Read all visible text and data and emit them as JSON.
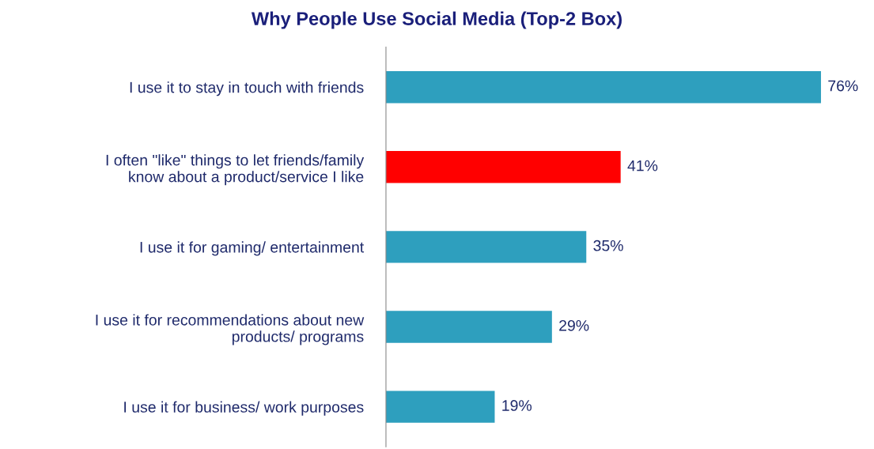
{
  "chart_data": {
    "type": "bar",
    "orientation": "horizontal",
    "title": "Why People Use Social Media (Top-2 Box)",
    "categories": [
      "I use it to stay in touch with friends",
      "I often \"like\" things to let friends/family\nknow about a product/service I like",
      "I use it for gaming/ entertainment",
      "I use it for recommendations about new\nproducts/ programs",
      "I use it for business/ work purposes"
    ],
    "values": [
      76,
      41,
      35,
      29,
      19
    ],
    "colors": [
      "#2e9fbe",
      "#ff0000",
      "#2e9fbe",
      "#2e9fbe",
      "#2e9fbe"
    ],
    "value_labels": [
      "76%",
      "41%",
      "35%",
      "29%",
      "19%"
    ],
    "grid": false,
    "legend": false
  }
}
